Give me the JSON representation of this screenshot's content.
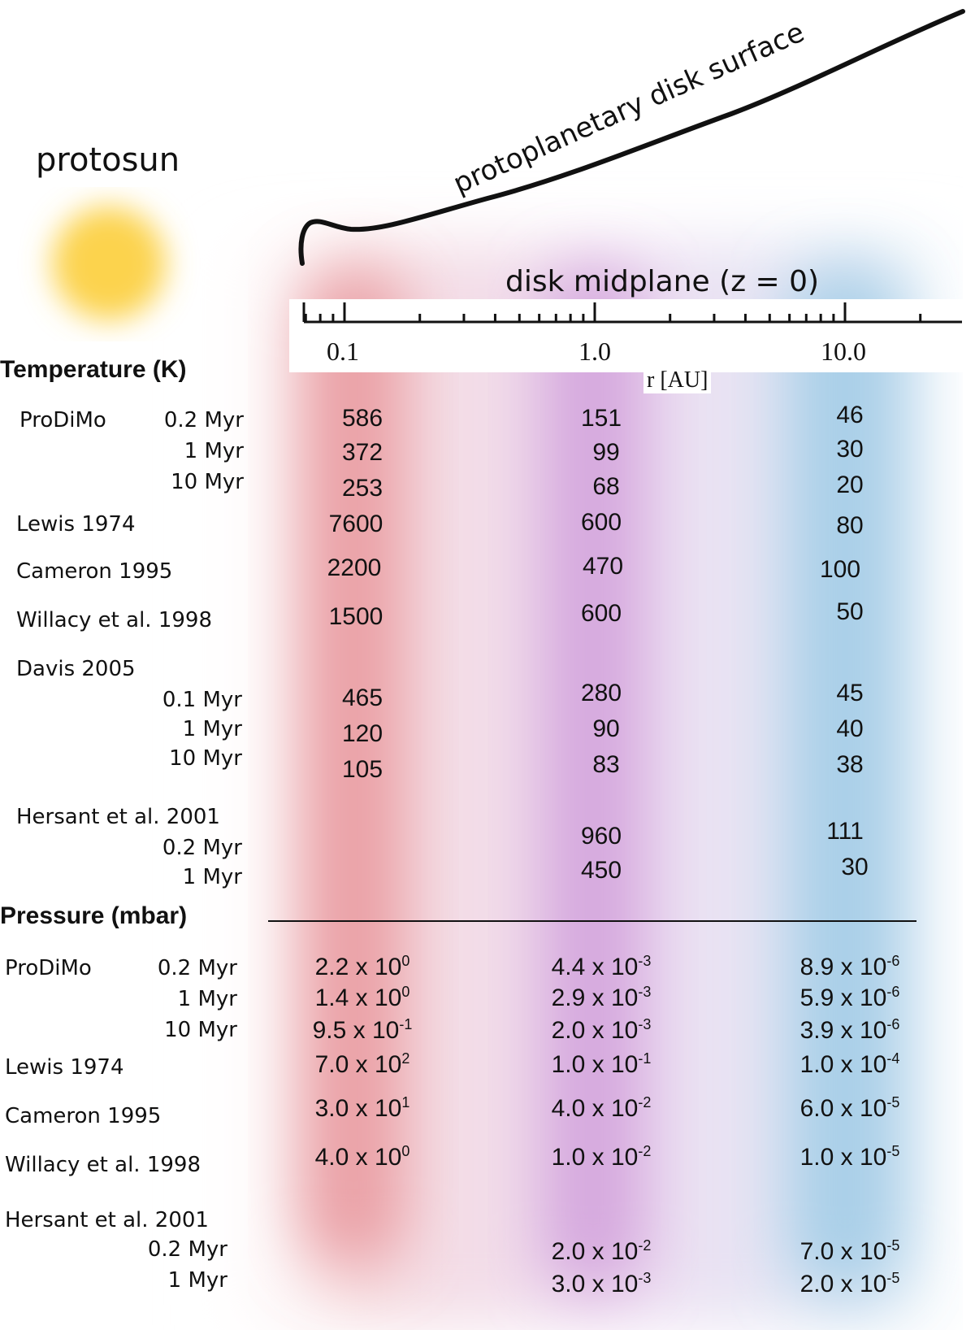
{
  "labels": {
    "protosun": "protosun",
    "disk_surface": "protoplanetary disk surface",
    "midplane": "disk midplane (z = 0)",
    "axis_unit": "r [AU]",
    "temperature_header": "Temperature (K)",
    "pressure_header": "Pressure (mbar)"
  },
  "axis": {
    "ticks": [
      "0.1",
      "1.0",
      "10.0"
    ]
  },
  "colors": {
    "sun": "#fcd34d",
    "band_red": "#eaa0a6",
    "band_purple": "#d5a8de",
    "band_blue": "#a9cfe8"
  },
  "temperature": {
    "prodimo": {
      "name": "ProDiMo",
      "ages": [
        "0.2 Myr",
        "1 Myr",
        "10 Myr"
      ],
      "values": [
        [
          "586",
          "151",
          "46"
        ],
        [
          "372",
          "99",
          "30"
        ],
        [
          "253",
          "68",
          "20"
        ]
      ]
    },
    "lewis": {
      "name": "Lewis 1974",
      "values": [
        "7600",
        "600",
        "80"
      ]
    },
    "cameron": {
      "name": "Cameron 1995",
      "values": [
        "2200",
        "470",
        "100"
      ]
    },
    "willacy": {
      "name": "Willacy et al. 1998",
      "values": [
        "1500",
        "600",
        "50"
      ]
    },
    "davis": {
      "name": "Davis 2005",
      "ages": [
        "0.1 Myr",
        "1 Myr",
        "10 Myr"
      ],
      "values": [
        [
          "465",
          "280",
          "45"
        ],
        [
          "120",
          "90",
          "40"
        ],
        [
          "105",
          "83",
          "38"
        ]
      ]
    },
    "hersant": {
      "name": "Hersant et al. 2001",
      "ages": [
        "0.2 Myr",
        "1 Myr"
      ],
      "values": [
        [
          "",
          "960",
          "111"
        ],
        [
          "",
          "450",
          "30"
        ]
      ]
    }
  },
  "pressure": {
    "prodimo": {
      "name": "ProDiMo",
      "ages": [
        "0.2 Myr",
        "1 Myr",
        "10 Myr"
      ],
      "values": [
        [
          [
            "2.2 x 10",
            "0"
          ],
          [
            "4.4 x 10",
            "-3"
          ],
          [
            "8.9 x 10",
            "-6"
          ]
        ],
        [
          [
            "1.4 x 10",
            "0"
          ],
          [
            "2.9 x 10",
            "-3"
          ],
          [
            "5.9 x 10",
            "-6"
          ]
        ],
        [
          [
            "9.5 x 10",
            "-1"
          ],
          [
            "2.0 x 10",
            "-3"
          ],
          [
            "3.9 x 10",
            "-6"
          ]
        ]
      ]
    },
    "lewis": {
      "name": "Lewis 1974",
      "values": [
        [
          "7.0 x 10",
          "2"
        ],
        [
          "1.0 x 10",
          "-1"
        ],
        [
          "1.0 x 10",
          "-4"
        ]
      ]
    },
    "cameron": {
      "name": "Cameron 1995",
      "values": [
        [
          "3.0 x 10",
          "1"
        ],
        [
          "4.0 x 10",
          "-2"
        ],
        [
          "6.0 x 10",
          "-5"
        ]
      ]
    },
    "willacy": {
      "name": "Willacy et al. 1998",
      "values": [
        [
          "4.0 x 10",
          "0"
        ],
        [
          "1.0 x 10",
          "-2"
        ],
        [
          "1.0 x 10",
          "-5"
        ]
      ]
    },
    "hersant": {
      "name": "Hersant et al. 2001",
      "ages": [
        "0.2 Myr",
        "1 Myr"
      ],
      "values": [
        [
          [
            "",
            ""
          ],
          [
            "2.0 x 10",
            "-2"
          ],
          [
            "7.0 x 10",
            "-5"
          ]
        ],
        [
          [
            "",
            ""
          ],
          [
            "3.0 x 10",
            "-3"
          ],
          [
            "2.0 x 10",
            "-5"
          ]
        ]
      ]
    }
  }
}
